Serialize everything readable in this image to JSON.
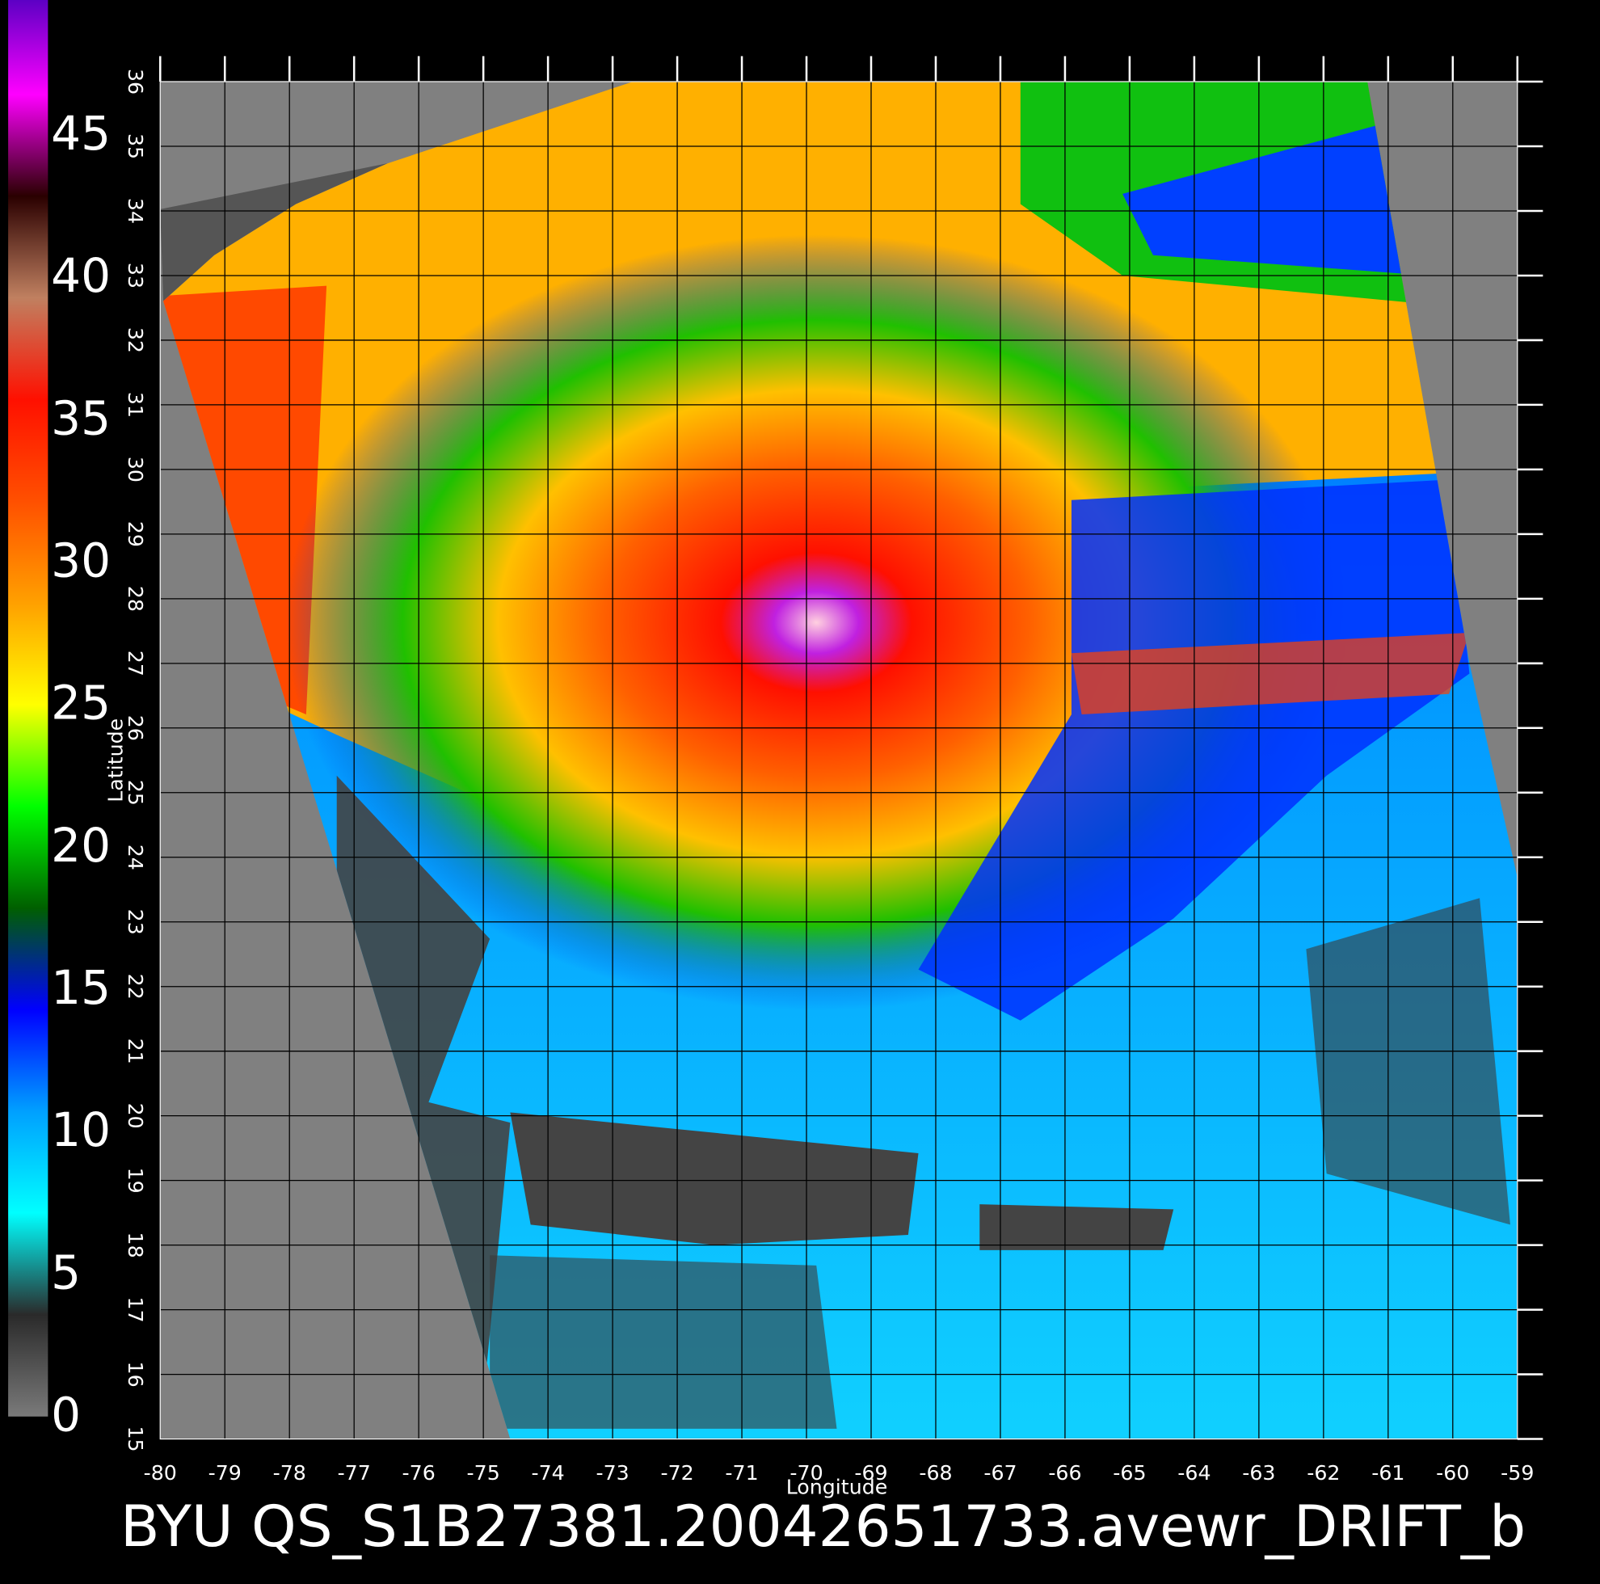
{
  "colorbar": {
    "ticks": [
      0,
      5,
      10,
      15,
      20,
      25,
      30,
      35,
      40,
      45
    ],
    "lim": [
      0,
      50
    ],
    "colors": [
      "#7a7a7a",
      "#2a2a2a",
      "#00ffff",
      "#00a0ff",
      "#0000ff",
      "#005f00",
      "#00ff00",
      "#ffff00",
      "#ffa000",
      "#ff5000",
      "#ff1000",
      "#c08060",
      "#2a0000",
      "#ff00ff",
      "#5000c0"
    ]
  },
  "map": {
    "xlabel": "Longitude",
    "ylabel": "Latitude",
    "xlim": [
      -80,
      -59
    ],
    "ylim": [
      15,
      36
    ],
    "xticks": [
      -80,
      -79,
      -78,
      -77,
      -76,
      -75,
      -74,
      -73,
      -72,
      -71,
      -70,
      -69,
      -68,
      -67,
      -66,
      -65,
      -64,
      -63,
      -62,
      -61,
      -60,
      -59
    ],
    "yticks": [
      15,
      16,
      17,
      18,
      19,
      20,
      21,
      22,
      23,
      24,
      25,
      26,
      27,
      28,
      29,
      30,
      31,
      32,
      33,
      34,
      35,
      36
    ]
  },
  "title": "BYU  QS_S1B27381.20042651733.avewr_DRIFT_b"
}
